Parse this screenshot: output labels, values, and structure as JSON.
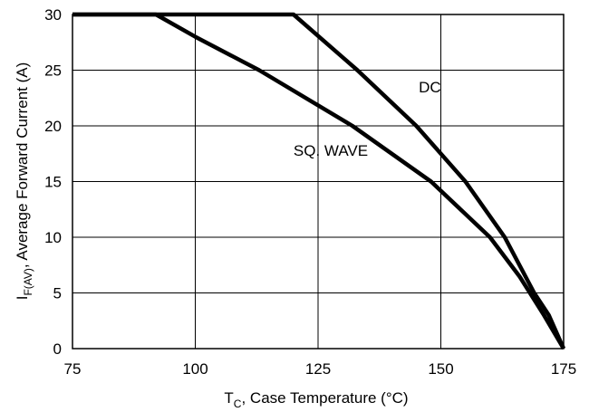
{
  "chart_data": {
    "type": "line",
    "title": "",
    "xlabel": {
      "main": "T",
      "sub": "C",
      "rest": ", Case Temperature (°C)"
    },
    "ylabel": {
      "main": "I",
      "sub": "F(AV)",
      "rest": ",  Average Forward Current (A)"
    },
    "xlim": [
      75,
      175
    ],
    "ylim": [
      0,
      30
    ],
    "x_ticks": [
      75,
      100,
      125,
      150,
      175
    ],
    "y_ticks": [
      0,
      5,
      10,
      15,
      20,
      25,
      30
    ],
    "grid": true,
    "series": [
      {
        "name": "DC",
        "points": [
          [
            75,
            30
          ],
          [
            120,
            30
          ],
          [
            133,
            25
          ],
          [
            145,
            20
          ],
          [
            155,
            15
          ],
          [
            163,
            10
          ],
          [
            169,
            5
          ],
          [
            172,
            3
          ],
          [
            175,
            0
          ]
        ]
      },
      {
        "name": "SQ. WAVE",
        "points": [
          [
            75,
            30
          ],
          [
            92,
            30
          ],
          [
            100,
            28
          ],
          [
            113,
            25
          ],
          [
            132,
            20
          ],
          [
            148,
            15
          ],
          [
            160,
            10
          ],
          [
            166,
            6.5
          ],
          [
            171,
            3
          ],
          [
            175,
            0
          ]
        ]
      }
    ],
    "annotations": [
      {
        "series": "DC",
        "text": "DC",
        "x": 145.5,
        "y": 23
      },
      {
        "series": "SQ. WAVE",
        "text": "SQ. WAVE",
        "x": 120,
        "y": 17.3
      }
    ]
  }
}
